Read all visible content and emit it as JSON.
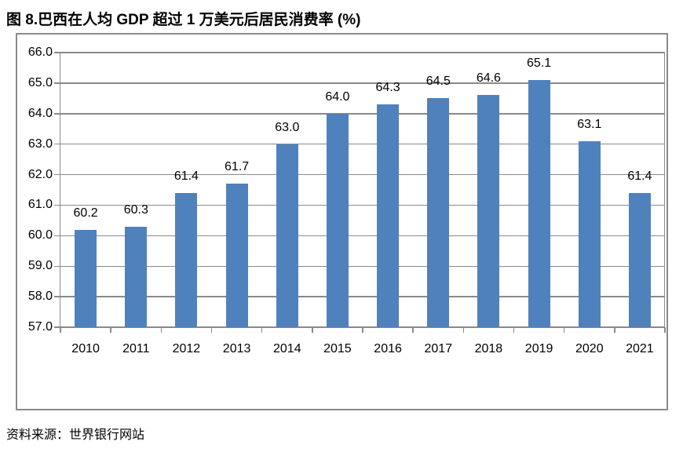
{
  "figure": {
    "title": "图 8.巴西在人均 GDP 超过 1 万美元后居民消费率 (%)",
    "source": "资料来源：世界银行网站"
  },
  "chart_data": {
    "type": "bar",
    "title": "图 8.巴西在人均 GDP 超过 1 万美元后居民消费率 (%)",
    "categories": [
      "2010",
      "2011",
      "2012",
      "2013",
      "2014",
      "2015",
      "2016",
      "2017",
      "2018",
      "2019",
      "2020",
      "2021"
    ],
    "values": [
      60.2,
      60.3,
      61.4,
      61.7,
      63.0,
      64.0,
      64.3,
      64.5,
      64.6,
      65.1,
      63.1,
      61.4
    ],
    "data_labels": [
      "60.2",
      "60.3",
      "61.4",
      "61.7",
      "63.0",
      "64.0",
      "64.3",
      "64.5",
      "64.6",
      "65.1",
      "63.1",
      "61.4"
    ],
    "xlabel": "",
    "ylabel": "",
    "ylim": [
      57.0,
      66.0
    ],
    "ytick_step": 1.0,
    "yticks": [
      "57.0",
      "58.0",
      "59.0",
      "60.0",
      "61.0",
      "62.0",
      "63.0",
      "64.0",
      "65.0",
      "66.0"
    ],
    "grid": "horizontal",
    "legend": "none",
    "bar_color": "#4F81BD",
    "grid_color": "#8a8a8a",
    "frame_color": "#8a8a8a",
    "text_color": "#000000"
  }
}
